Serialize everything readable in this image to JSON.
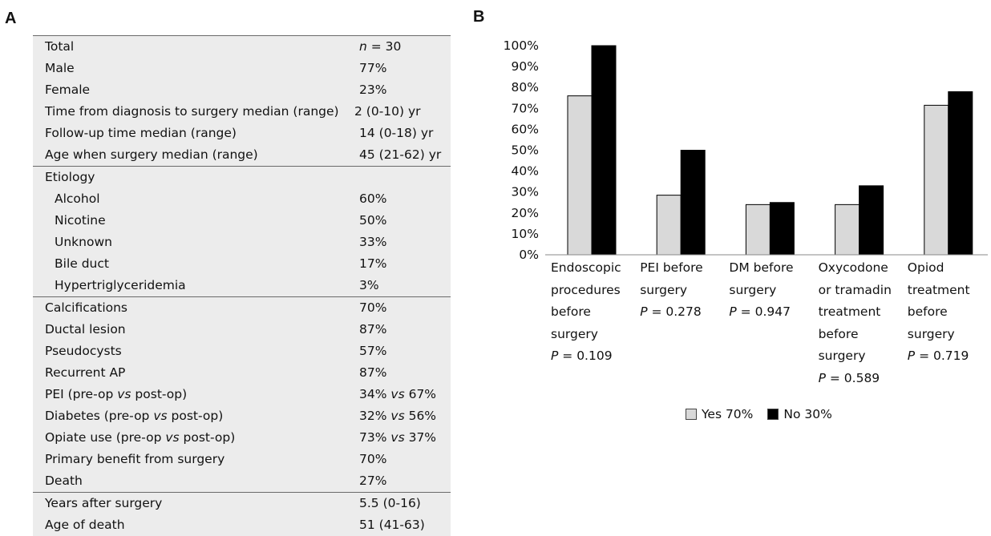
{
  "panel_labels": {
    "a": "A",
    "b": "B"
  },
  "table": {
    "sections": [
      {
        "rows": [
          {
            "label": "Total",
            "value": "n = 30",
            "italic_n": true
          },
          {
            "label": "Male",
            "value": "77%"
          },
          {
            "label": "Female",
            "value": "23%"
          },
          {
            "label": "Time from diagnosis to surgery median (range)",
            "value": "2 (0-10) yr",
            "wide": true
          },
          {
            "label": "Follow-up time median (range)",
            "value": "14 (0-18) yr"
          },
          {
            "label": "Age when surgery median (range)",
            "value": "45 (21-62) yr"
          }
        ]
      },
      {
        "rows": [
          {
            "label": "Etiology",
            "value": ""
          },
          {
            "label": "Alcohol",
            "value": "60%",
            "indent": true
          },
          {
            "label": "Nicotine",
            "value": "50%",
            "indent": true
          },
          {
            "label": "Unknown",
            "value": "33%",
            "indent": true
          },
          {
            "label": "Bile duct",
            "value": "17%",
            "indent": true
          },
          {
            "label": "Hypertriglyceridemia",
            "value": "3%",
            "indent": true
          }
        ]
      },
      {
        "rows": [
          {
            "label": "Calcifications",
            "value": "70%"
          },
          {
            "label": "Ductal lesion",
            "value": "87%"
          },
          {
            "label": "Pseudocysts",
            "value": "57%"
          },
          {
            "label": "Recurrent AP",
            "value": "87%"
          },
          {
            "label": "PEI (pre-op vs post-op)",
            "value": "34% vs 67%"
          },
          {
            "label": "Diabetes (pre-op vs post-op)",
            "value": "32% vs 56%"
          },
          {
            "label": "Opiate use (pre-op vs post-op)",
            "value": "73% vs 37%"
          },
          {
            "label": "Primary benefit from surgery",
            "value": "70%"
          },
          {
            "label": "Death",
            "value": "27%"
          }
        ]
      },
      {
        "rows": [
          {
            "label": "Years after surgery",
            "value": "5.5 (0-16)"
          },
          {
            "label": "Age of death",
            "value": "51 (41-63)"
          }
        ]
      }
    ]
  },
  "chart_data": {
    "type": "bar",
    "categories": [
      {
        "label": "Endoscopic\nprocedures\nbefore\nsurgery",
        "p": "P = 0.109"
      },
      {
        "label": "PEI before\nsurgery",
        "p": "P = 0.278"
      },
      {
        "label": "DM before\nsurgery",
        "p": "P = 0.947"
      },
      {
        "label": "Oxycodone\nor tramadin\ntreatment\nbefore\nsurgery",
        "p": "P = 0.589"
      },
      {
        "label": "Opiod\ntreatment\nbefore\nsurgery",
        "p": "P = 0.719"
      }
    ],
    "series": [
      {
        "name": "Yes 70%",
        "color": "#d9d9d9",
        "values": [
          76,
          28.5,
          24,
          24,
          71.5
        ]
      },
      {
        "name": "No 30%",
        "color": "#000000",
        "values": [
          100,
          50,
          25,
          33,
          78
        ]
      }
    ],
    "ylim": [
      0,
      100
    ],
    "yticks": [
      "0%",
      "10%",
      "20%",
      "30%",
      "40%",
      "50%",
      "60%",
      "70%",
      "80%",
      "90%",
      "100%"
    ],
    "grid": false,
    "legend_position": "bottom"
  }
}
